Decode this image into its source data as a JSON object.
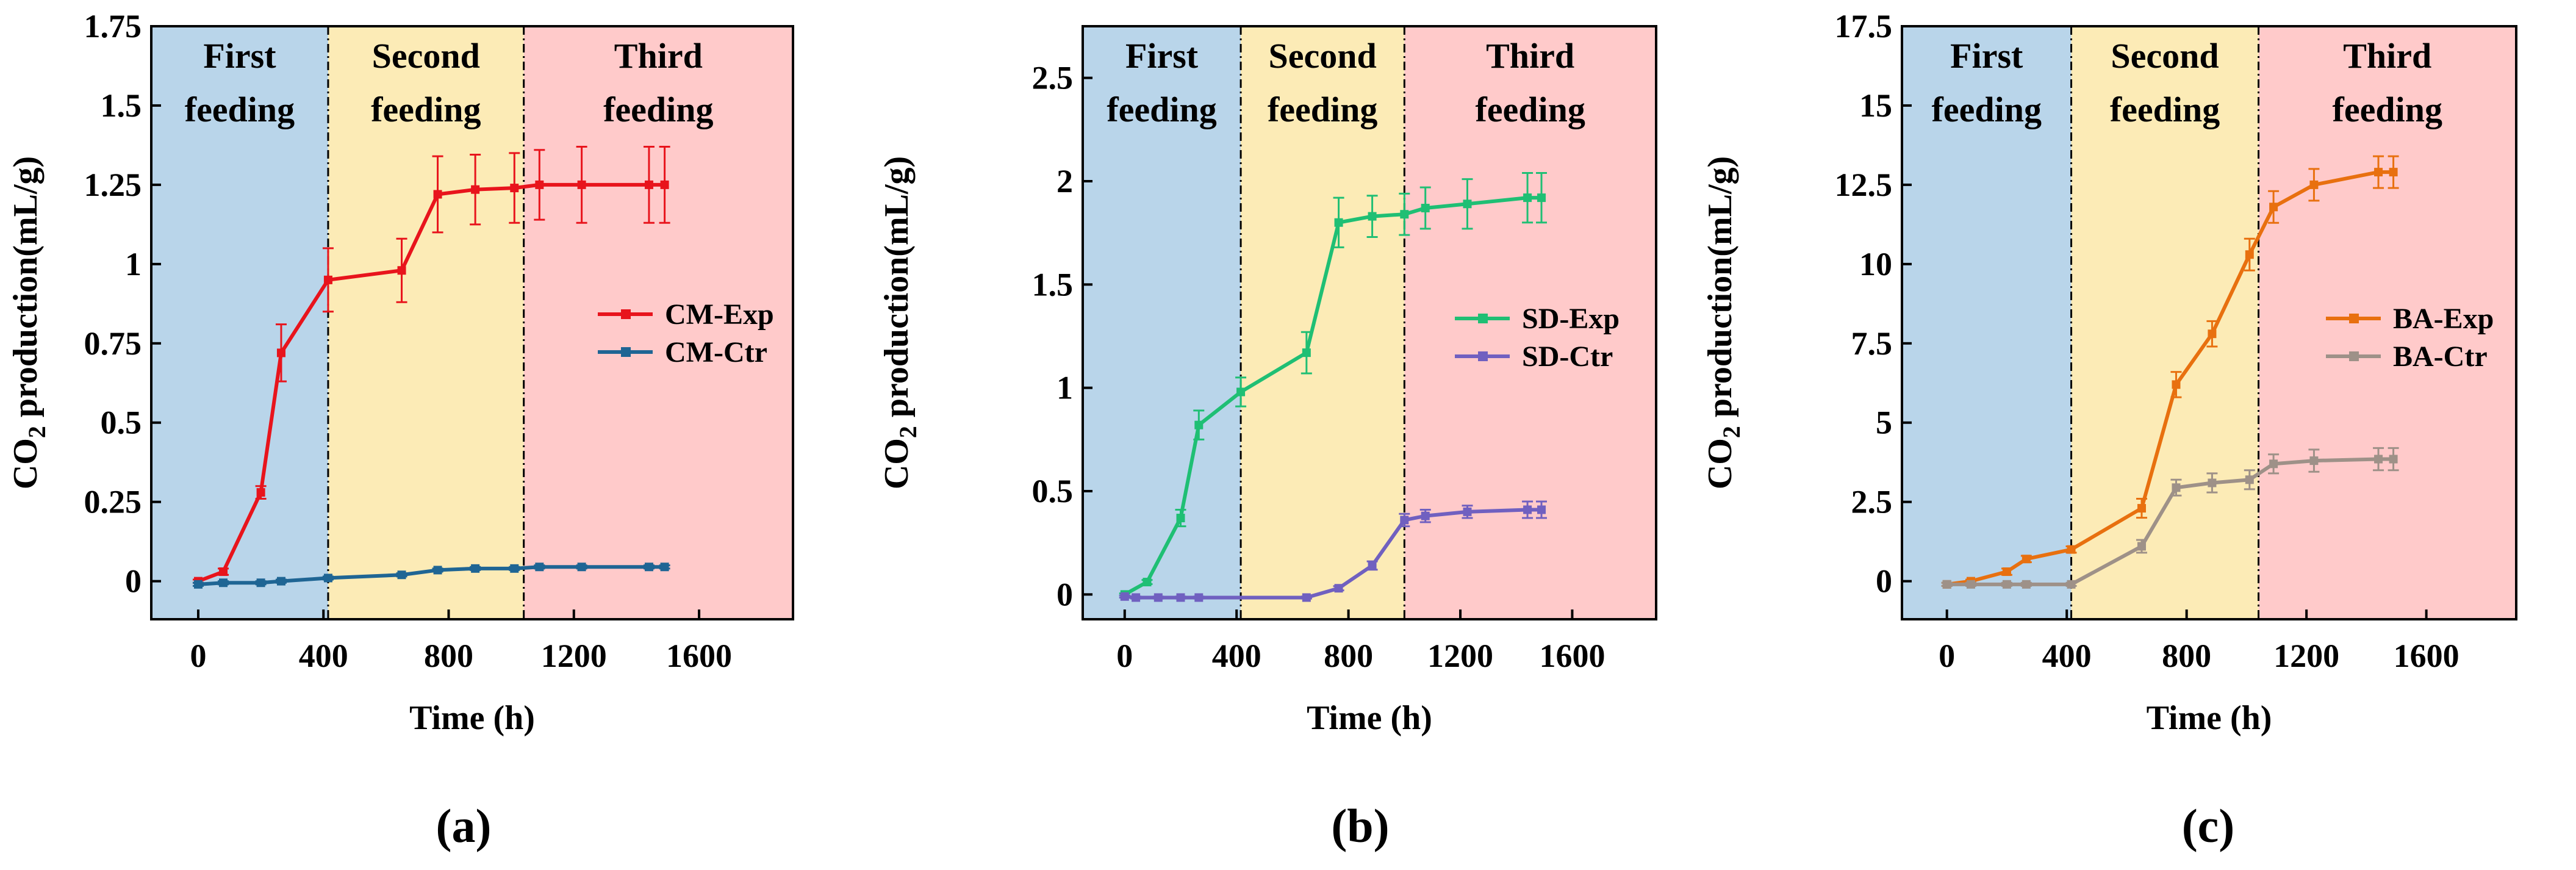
{
  "chart_data": [
    {
      "type": "line",
      "panel_label": "(a)",
      "xlabel": "Time (h)",
      "ylabel_main": "CO",
      "ylabel_sub": "2",
      "ylabel_rest": " production(mL/g)",
      "xlim": [
        -150,
        1900
      ],
      "ylim": [
        -0.12,
        1.75
      ],
      "xticks": [
        0,
        400,
        800,
        1200,
        1600
      ],
      "xtick_labels": [
        "0",
        "400",
        "800",
        "1200",
        "1600"
      ],
      "yticks": [
        0,
        0.25,
        0.5,
        0.75,
        1,
        1.25,
        1.5,
        1.75
      ],
      "ytick_labels": [
        "0",
        "0.25",
        "0.5",
        "0.75",
        "1",
        "1.25",
        "1.5",
        "1.75"
      ],
      "stages": [
        {
          "name": "first",
          "from": -150,
          "to": 415,
          "label_lines": [
            "First",
            "feeding"
          ],
          "color": "#b9d5ea"
        },
        {
          "name": "second",
          "from": 415,
          "to": 1040,
          "label_lines": [
            "Second",
            "feeding"
          ],
          "color": "#fcebb6"
        },
        {
          "name": "third",
          "from": 1040,
          "to": 1900,
          "label_lines": [
            "Third",
            "feeding"
          ],
          "color": "#ffcaca"
        }
      ],
      "stage_boundaries": [
        415,
        1040
      ],
      "series": [
        {
          "name": "CM-Exp",
          "color": "#e8141c",
          "x": [
            0,
            80,
            200,
            265,
            415,
            650,
            765,
            885,
            1010,
            1090,
            1225,
            1440,
            1490
          ],
          "y": [
            0,
            0.03,
            0.28,
            0.72,
            0.95,
            0.98,
            1.22,
            1.235,
            1.24,
            1.25,
            1.25,
            1.25,
            1.25
          ],
          "err": [
            0.005,
            0.01,
            0.02,
            0.09,
            0.1,
            0.1,
            0.12,
            0.11,
            0.11,
            0.11,
            0.12,
            0.12,
            0.12
          ]
        },
        {
          "name": "CM-Ctr",
          "color": "#1f6594",
          "x": [
            0,
            80,
            200,
            265,
            415,
            650,
            765,
            885,
            1010,
            1090,
            1225,
            1440,
            1490
          ],
          "y": [
            -0.01,
            -0.005,
            -0.005,
            0,
            0.01,
            0.02,
            0.035,
            0.04,
            0.04,
            0.045,
            0.045,
            0.045,
            0.045
          ],
          "err": [
            0.005,
            0.005,
            0.005,
            0.005,
            0.005,
            0.005,
            0.005,
            0.005,
            0.005,
            0.005,
            0.005,
            0.005,
            0.005
          ]
        }
      ],
      "legend_position": "right-middle"
    },
    {
      "type": "line",
      "panel_label": "(b)",
      "xlabel": "Time (h)",
      "ylabel_main": "CO",
      "ylabel_sub": "2",
      "ylabel_rest": " production(mL/g)",
      "xlim": [
        -150,
        1900
      ],
      "ylim": [
        -0.12,
        2.75
      ],
      "xticks": [
        0,
        400,
        800,
        1200,
        1600
      ],
      "xtick_labels": [
        "0",
        "400",
        "800",
        "1200",
        "1600"
      ],
      "yticks": [
        0,
        0.5,
        1,
        1.5,
        2,
        2.5
      ],
      "ytick_labels": [
        "0",
        "0.5",
        "1",
        "1.5",
        "2",
        "2.5"
      ],
      "stages": [
        {
          "name": "first",
          "from": -150,
          "to": 415,
          "label_lines": [
            "First",
            "feeding"
          ],
          "color": "#b9d5ea"
        },
        {
          "name": "second",
          "from": 415,
          "to": 1000,
          "label_lines": [
            "Second",
            "feeding"
          ],
          "color": "#fcebb6"
        },
        {
          "name": "third",
          "from": 1000,
          "to": 1900,
          "label_lines": [
            "Third",
            "feeding"
          ],
          "color": "#ffcaca"
        }
      ],
      "stage_boundaries": [
        415,
        1000
      ],
      "series": [
        {
          "name": "SD-Exp",
          "color": "#1fbf74",
          "x": [
            0,
            80,
            200,
            265,
            415,
            650,
            765,
            885,
            1000,
            1075,
            1225,
            1440,
            1490
          ],
          "y": [
            0,
            0.06,
            0.37,
            0.82,
            0.98,
            1.17,
            1.8,
            1.83,
            1.84,
            1.87,
            1.89,
            1.92,
            1.92
          ],
          "err": [
            0.005,
            0.01,
            0.04,
            0.07,
            0.07,
            0.1,
            0.12,
            0.1,
            0.1,
            0.1,
            0.12,
            0.12,
            0.12
          ]
        },
        {
          "name": "SD-Ctr",
          "color": "#7060c0",
          "x": [
            0,
            40,
            120,
            200,
            265,
            650,
            765,
            885,
            1000,
            1075,
            1225,
            1440,
            1490
          ],
          "y": [
            -0.01,
            -0.015,
            -0.015,
            -0.015,
            -0.015,
            -0.015,
            0.03,
            0.14,
            0.36,
            0.38,
            0.4,
            0.41,
            0.41
          ],
          "err": [
            0.005,
            0.005,
            0.005,
            0.005,
            0.005,
            0.005,
            0.01,
            0.02,
            0.03,
            0.03,
            0.03,
            0.04,
            0.04
          ]
        }
      ],
      "legend_position": "right-middle"
    },
    {
      "type": "line",
      "panel_label": "(c)",
      "xlabel": "Time (h)",
      "ylabel_main": "CO",
      "ylabel_sub": "2",
      "ylabel_rest": " production(mL/g)",
      "xlim": [
        -150,
        1900
      ],
      "ylim": [
        -1.2,
        17.5
      ],
      "xticks": [
        0,
        400,
        800,
        1200,
        1600
      ],
      "xtick_labels": [
        "0",
        "400",
        "800",
        "1200",
        "1600"
      ],
      "yticks": [
        0,
        2.5,
        5,
        7.5,
        10,
        12.5,
        15,
        17.5
      ],
      "ytick_labels": [
        "0",
        "2.5",
        "5",
        "7.5",
        "10",
        "12.5",
        "15",
        "17.5"
      ],
      "stages": [
        {
          "name": "first",
          "from": -150,
          "to": 415,
          "label_lines": [
            "First",
            "feeding"
          ],
          "color": "#b9d5ea"
        },
        {
          "name": "second",
          "from": 415,
          "to": 1040,
          "label_lines": [
            "Second",
            "feeding"
          ],
          "color": "#fcebb6"
        },
        {
          "name": "third",
          "from": 1040,
          "to": 1900,
          "label_lines": [
            "Third",
            "feeding"
          ],
          "color": "#ffcaca"
        }
      ],
      "stage_boundaries": [
        415,
        1040
      ],
      "series": [
        {
          "name": "BA-Exp",
          "color": "#e8700f",
          "x": [
            0,
            80,
            200,
            265,
            415,
            650,
            765,
            885,
            1010,
            1090,
            1225,
            1440,
            1490
          ],
          "y": [
            -0.1,
            0.0,
            0.3,
            0.7,
            1.0,
            2.3,
            6.2,
            7.8,
            10.3,
            11.8,
            12.5,
            12.9,
            12.9
          ],
          "err": [
            0.05,
            0.05,
            0.1,
            0.1,
            0.1,
            0.3,
            0.4,
            0.4,
            0.5,
            0.5,
            0.5,
            0.5,
            0.5
          ]
        },
        {
          "name": "BA-Ctr",
          "color": "#9e9188",
          "x": [
            0,
            80,
            200,
            265,
            415,
            650,
            765,
            885,
            1010,
            1090,
            1225,
            1440,
            1490
          ],
          "y": [
            -0.1,
            -0.1,
            -0.1,
            -0.1,
            -0.1,
            1.1,
            2.95,
            3.1,
            3.2,
            3.7,
            3.8,
            3.85,
            3.85
          ],
          "err": [
            0.05,
            0.05,
            0.05,
            0.05,
            0.05,
            0.2,
            0.25,
            0.3,
            0.3,
            0.3,
            0.35,
            0.35,
            0.35
          ]
        }
      ],
      "legend_position": "right-middle"
    }
  ]
}
